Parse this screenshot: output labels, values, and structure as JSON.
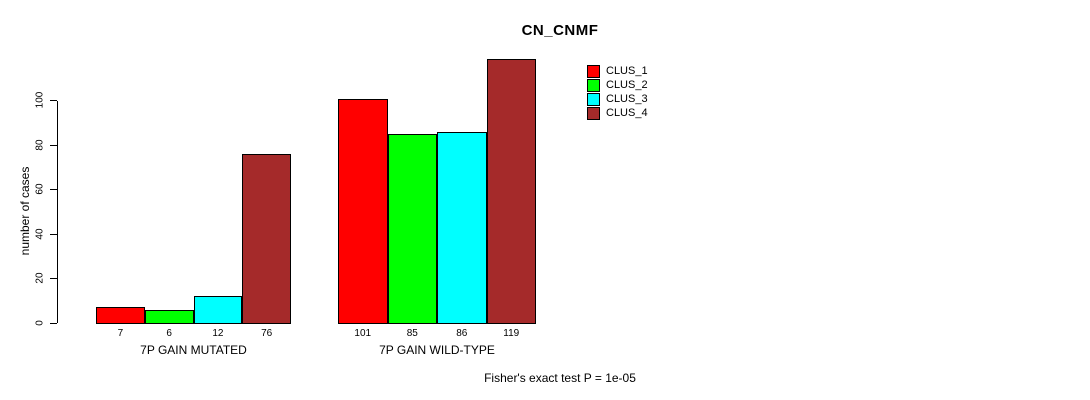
{
  "figure": {
    "background": "#FFFFFF",
    "axis_color": "#000000",
    "text_color": "#000000"
  },
  "chart_data": {
    "type": "bar",
    "title": "CN_CNMF",
    "ylabel": "number of cases",
    "xlabel": "",
    "categories": [
      "7P GAIN MUTATED",
      "7P GAIN WILD-TYPE"
    ],
    "series": [
      {
        "name": "CLUS_1",
        "color": "#FF0000",
        "values": [
          7,
          101
        ]
      },
      {
        "name": "CLUS_2",
        "color": "#00FF00",
        "values": [
          6,
          85
        ]
      },
      {
        "name": "CLUS_3",
        "color": "#00FFFF",
        "values": [
          12,
          86
        ]
      },
      {
        "name": "CLUS_4",
        "color": "#A52A2A",
        "values": [
          76,
          119
        ]
      }
    ],
    "yticks": [
      0,
      20,
      40,
      60,
      80,
      100
    ],
    "ylim": [
      0,
      119
    ],
    "grid": false,
    "bar_labels_shown": true,
    "legend": {
      "position": "upper-right",
      "entries": [
        "CLUS_1",
        "CLUS_2",
        "CLUS_3",
        "CLUS_4"
      ]
    },
    "annotation": "Fisher's exact test P = 1e-05"
  }
}
